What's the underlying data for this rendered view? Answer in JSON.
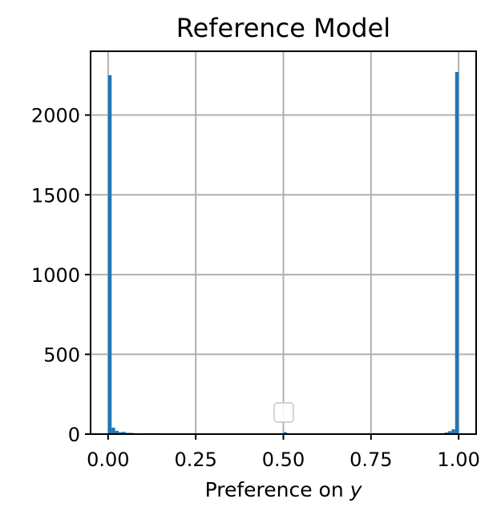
{
  "chart_data": {
    "type": "bar",
    "title": "Reference Model",
    "xlabel": "Preference on ",
    "xlabel_var": "y",
    "ylabel": "",
    "xlim": [
      -0.05,
      1.05
    ],
    "ylim": [
      0,
      2400
    ],
    "grid": true,
    "legend": "bottom-center",
    "bin_width": 0.01,
    "bar_color": "#1f77b4",
    "x_ticks": [
      {
        "value": 0.0,
        "label": "0.00"
      },
      {
        "value": 0.25,
        "label": "0.25"
      },
      {
        "value": 0.5,
        "label": "0.50"
      },
      {
        "value": 0.75,
        "label": "0.75"
      },
      {
        "value": 1.0,
        "label": "1.00"
      }
    ],
    "y_ticks": [
      {
        "value": 0,
        "label": "0"
      },
      {
        "value": 500,
        "label": "500"
      },
      {
        "value": 1000,
        "label": "1000"
      },
      {
        "value": 1500,
        "label": "1500"
      },
      {
        "value": 2000,
        "label": "2000"
      }
    ],
    "bins": [
      {
        "x": 0.0,
        "count": 2250
      },
      {
        "x": 0.01,
        "count": 40
      },
      {
        "x": 0.02,
        "count": 20
      },
      {
        "x": 0.03,
        "count": 12
      },
      {
        "x": 0.04,
        "count": 14
      },
      {
        "x": 0.05,
        "count": 8
      },
      {
        "x": 0.06,
        "count": 8
      },
      {
        "x": 0.07,
        "count": 6
      },
      {
        "x": 0.08,
        "count": 5
      },
      {
        "x": 0.09,
        "count": 5
      },
      {
        "x": 0.1,
        "count": 4
      },
      {
        "x": 0.11,
        "count": 3
      },
      {
        "x": 0.12,
        "count": 6
      },
      {
        "x": 0.13,
        "count": 3
      },
      {
        "x": 0.15,
        "count": 3
      },
      {
        "x": 0.17,
        "count": 3
      },
      {
        "x": 0.2,
        "count": 2
      },
      {
        "x": 0.23,
        "count": 2
      },
      {
        "x": 0.26,
        "count": 2
      },
      {
        "x": 0.3,
        "count": 2
      },
      {
        "x": 0.35,
        "count": 2
      },
      {
        "x": 0.39,
        "count": 5
      },
      {
        "x": 0.43,
        "count": 2
      },
      {
        "x": 0.47,
        "count": 3
      },
      {
        "x": 0.5,
        "count": 12
      },
      {
        "x": 0.53,
        "count": 2
      },
      {
        "x": 0.58,
        "count": 2
      },
      {
        "x": 0.63,
        "count": 2
      },
      {
        "x": 0.68,
        "count": 2
      },
      {
        "x": 0.73,
        "count": 2
      },
      {
        "x": 0.78,
        "count": 2
      },
      {
        "x": 0.83,
        "count": 2
      },
      {
        "x": 0.87,
        "count": 3
      },
      {
        "x": 0.91,
        "count": 3
      },
      {
        "x": 0.93,
        "count": 4
      },
      {
        "x": 0.95,
        "count": 6
      },
      {
        "x": 0.96,
        "count": 10
      },
      {
        "x": 0.97,
        "count": 18
      },
      {
        "x": 0.98,
        "count": 30
      },
      {
        "x": 0.99,
        "count": 2270
      }
    ]
  }
}
